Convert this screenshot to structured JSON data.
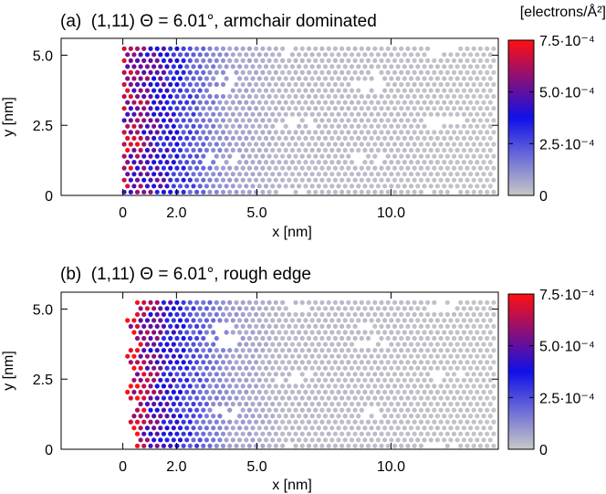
{
  "colorbar_title": "[electrons/Å²]",
  "chart_data": [
    {
      "type": "heatmap",
      "title": "(a)  (1,11) Θ = 6.01°, armchair dominated",
      "xlabel": "x [nm]",
      "ylabel": "y [nm]",
      "xlim": [
        -2.3,
        14.0
      ],
      "ylim": [
        0,
        5.6
      ],
      "xticks": [
        0,
        2.0,
        5.0,
        10.0
      ],
      "xtick_labels": [
        "0",
        "2.0",
        "5.0",
        "10.0"
      ],
      "yticks": [
        0,
        2.5,
        5.0
      ],
      "ytick_labels": [
        "0",
        "2.5",
        "5.0"
      ],
      "data_x_range": [
        0,
        13.9
      ],
      "edge": "armchair",
      "density_profile": {
        "x": [
          0,
          0.5,
          1.0,
          1.5,
          2.0,
          2.5,
          3.0,
          4.0,
          6.0,
          13.9
        ],
        "value": [
          0.00062,
          0.00058,
          0.00046,
          0.0004,
          0.00032,
          0.00025,
          0.00017,
          8e-05,
          3e-05,
          1e-05
        ]
      },
      "colorbar": {
        "cmin": 0,
        "cmax": 0.00075,
        "ticks": [
          0,
          0.00025,
          0.0005,
          0.00075
        ],
        "tick_labels": [
          "0",
          "2.5·10⁻⁴",
          "5.0·10⁻⁴",
          "7.5·10⁻⁴"
        ],
        "colors": [
          "#c8c8c8",
          "#1010e8",
          "#ff1010"
        ]
      }
    },
    {
      "type": "heatmap",
      "title": "(b)  (1,11) Θ = 6.01°, rough edge",
      "xlabel": "x [nm]",
      "ylabel": "y [nm]",
      "xlim": [
        -2.3,
        14.0
      ],
      "ylim": [
        0,
        5.6
      ],
      "xticks": [
        0,
        2.0,
        5.0,
        10.0
      ],
      "xtick_labels": [
        "0",
        "2.0",
        "5.0",
        "10.0"
      ],
      "yticks": [
        0,
        2.5,
        5.0
      ],
      "ytick_labels": [
        "0",
        "2.5",
        "5.0"
      ],
      "data_x_range": [
        0,
        13.9
      ],
      "edge": "rough",
      "density_profile": {
        "x": [
          0,
          0.5,
          1.0,
          1.5,
          2.0,
          2.5,
          3.0,
          4.0,
          6.0,
          13.9
        ],
        "value": [
          0.0007,
          0.00066,
          0.00052,
          0.00043,
          0.00035,
          0.00027,
          0.00019,
          9e-05,
          3e-05,
          1e-05
        ]
      },
      "colorbar": {
        "cmin": 0,
        "cmax": 0.00075,
        "ticks": [
          0,
          0.00025,
          0.0005,
          0.00075
        ],
        "tick_labels": [
          "0",
          "2.5·10⁻⁴",
          "5.0·10⁻⁴",
          "7.5·10⁻⁴"
        ],
        "colors": [
          "#c8c8c8",
          "#1010e8",
          "#ff1010"
        ]
      }
    }
  ]
}
